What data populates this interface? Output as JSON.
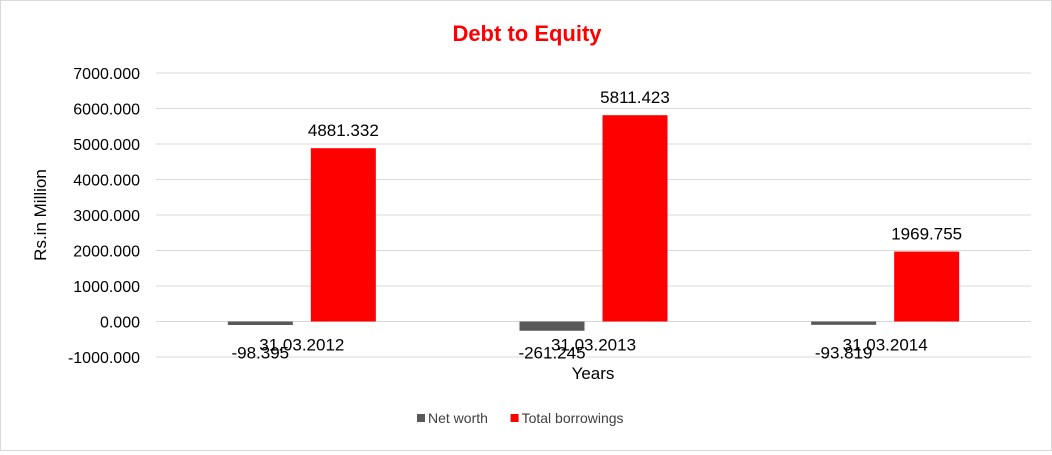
{
  "chart_data": {
    "type": "bar",
    "title": "Debt to Equity",
    "xlabel": "Years",
    "ylabel": "Rs.in Million",
    "categories": [
      "31.03.2012",
      "31.03.2013",
      "31.03.2014"
    ],
    "series": [
      {
        "name": "Net worth",
        "values": [
          -98.395,
          -261.245,
          -93.819
        ],
        "labels": [
          "-98.395",
          "-261.245",
          "-93.819"
        ],
        "color": "#595959"
      },
      {
        "name": "Total borrowings",
        "values": [
          4881.332,
          5811.423,
          1969.755
        ],
        "labels": [
          "4881.332",
          "5811.423",
          "1969.755"
        ],
        "color": "#ff0000"
      }
    ],
    "ylim": [
      -1000,
      7000
    ],
    "yticks": [
      7000,
      6000,
      5000,
      4000,
      3000,
      2000,
      1000,
      0,
      -1000
    ],
    "ytick_labels": [
      "7000.000",
      "6000.000",
      "5000.000",
      "4000.000",
      "3000.000",
      "2000.000",
      "1000.000",
      "0.000",
      "-1000.000"
    ],
    "grid": true,
    "legend": "bottom",
    "title_color": "#ff0000"
  }
}
